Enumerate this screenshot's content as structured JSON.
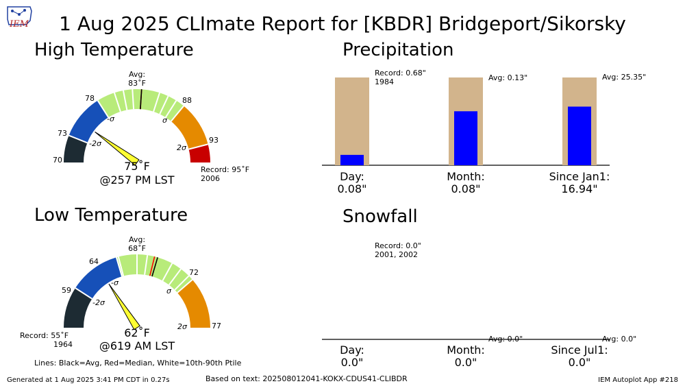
{
  "header": {
    "title": "1 Aug 2025 CLImate Report for [KBDR] Bridgeport/Sikorsky",
    "logo_text": "IEM"
  },
  "colors": {
    "dark": "#1d2b33",
    "blue": "#1650b8",
    "green": "#b8eb7a",
    "orange": "#e58a00",
    "red": "#c80000",
    "yellow": "#ffff33",
    "tan": "#d2b48c",
    "bar": "#0000ff"
  },
  "high": {
    "section_title": "High Temperature",
    "avg_label": "Avg:",
    "avg_value": "83˚F",
    "reading": "75˚F",
    "time": "@257 PM LST",
    "record_label": "Record: 95˚F",
    "record_year": "2006",
    "sigma_minus": "-σ",
    "sigma_minus2": "-2σ",
    "sigma_plus": "σ",
    "sigma_plus2": "2σ",
    "ticks": [
      "70",
      "73",
      "78",
      "88",
      "93"
    ]
  },
  "low": {
    "section_title": "Low Temperature",
    "avg_label": "Avg:",
    "avg_value": "68˚F",
    "reading": "62˚F",
    "time": "@619 AM LST",
    "record_label": "Record: 55˚F",
    "record_year": "1964",
    "sigma_minus": "-σ",
    "sigma_minus2": "-2σ",
    "sigma_plus": "σ",
    "sigma_plus2": "2σ",
    "ticks": [
      "59",
      "64",
      "72",
      "77"
    ]
  },
  "legend_note": "Lines: Black=Avg, Red=Median, White=10th-90th Ptile",
  "precip": {
    "section_title": "Precipitation",
    "record_label": "Record: 0.68\"",
    "record_year": "1984",
    "month_avg": "Avg: 0.13\"",
    "ytd_avg": "Avg: 25.35\"",
    "day_label": "Day:",
    "day_value": "0.08\"",
    "month_label": "Month:",
    "month_value": "0.08\"",
    "ytd_label": "Since Jan1:",
    "ytd_value": "16.94\""
  },
  "snow": {
    "section_title": "Snowfall",
    "record_label": "Record: 0.0\"",
    "record_year": "2001, 2002",
    "month_avg": "Avg: 0.0\"",
    "ytd_avg": "Avg: 0.0\"",
    "day_label": "Day:",
    "day_value": "0.0\"",
    "month_label": "Month:",
    "month_value": "0.0\"",
    "ytd_label": "Since Jul1:",
    "ytd_value": "0.0\""
  },
  "footer": {
    "generated": "Generated at 1 Aug 2025 3:41 PM CDT in 0.27s",
    "based_on": "Based on text: 202508012041-KOKX-CDUS41-CLIBDR",
    "app": "IEM Autoplot App #218"
  },
  "chart_data": [
    {
      "type": "gauge",
      "name": "high",
      "observed": 75,
      "average": 83,
      "record": 95,
      "range": [
        70,
        95
      ],
      "bands": [
        {
          "from": 70,
          "to": 73,
          "color": "dark"
        },
        {
          "from": 73,
          "to": 78,
          "color": "blue"
        },
        {
          "from": 78,
          "to": 88,
          "color": "green"
        },
        {
          "from": 88,
          "to": 93,
          "color": "orange"
        },
        {
          "from": 93,
          "to": 95,
          "color": "red"
        }
      ],
      "median": 83,
      "percentile_lines": [
        80,
        81,
        82,
        85,
        86,
        87
      ],
      "tick_values": [
        70,
        73,
        78,
        88,
        93
      ]
    },
    {
      "type": "gauge",
      "name": "low",
      "observed": 62,
      "average": 68,
      "record": 55,
      "range": [
        55,
        77
      ],
      "bands": [
        {
          "from": 55,
          "to": 59,
          "color": "dark"
        },
        {
          "from": 59,
          "to": 64,
          "color": "blue"
        },
        {
          "from": 64,
          "to": 72,
          "color": "green"
        },
        {
          "from": 72,
          "to": 77,
          "color": "orange"
        }
      ],
      "median": 67.7,
      "percentile_lines": [
        64.2,
        66,
        67,
        69.5,
        70.5,
        71.5
      ],
      "tick_values": [
        59,
        64,
        72,
        77
      ]
    },
    {
      "type": "bar",
      "name": "precipitation",
      "categories": [
        "Day",
        "Month",
        "Since Jan1"
      ],
      "values": [
        0.08,
        0.08,
        16.94
      ],
      "reference": [
        0.68,
        0.13,
        25.35
      ],
      "fill_fraction": [
        0.118,
        0.615,
        0.668
      ]
    },
    {
      "type": "bar",
      "name": "snowfall",
      "categories": [
        "Day",
        "Month",
        "Since Jul1"
      ],
      "values": [
        0.0,
        0.0,
        0.0
      ],
      "reference": [
        0.0,
        0.0,
        0.0
      ]
    }
  ]
}
